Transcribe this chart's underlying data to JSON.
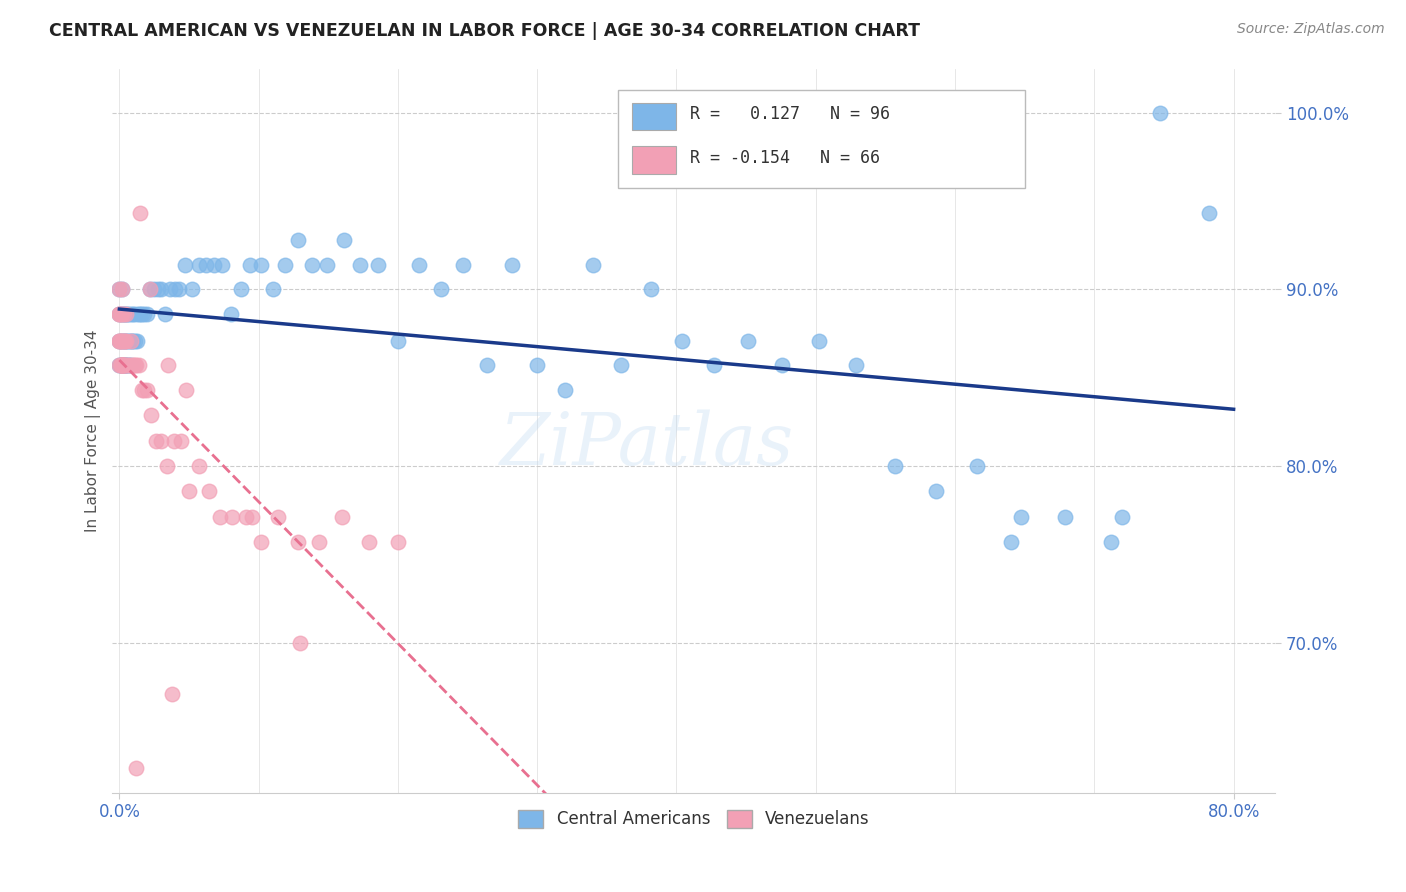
{
  "title": "CENTRAL AMERICAN VS VENEZUELAN IN LABOR FORCE | AGE 30-34 CORRELATION CHART",
  "source": "Source: ZipAtlas.com",
  "ylabel": "In Labor Force | Age 30-34",
  "y_min": 0.615,
  "y_max": 1.025,
  "x_min": -0.005,
  "x_max": 0.83,
  "blue_color": "#7EB6E8",
  "pink_color": "#F2A0B5",
  "blue_line_color": "#1A3A8A",
  "pink_line_color": "#E87090",
  "legend_blue_r": "R =",
  "legend_blue_rv": "0.127",
  "legend_blue_n": "N = 96",
  "legend_pink_r": "R = -0.154",
  "legend_pink_rv": "-0.154",
  "legend_pink_n": "N = 66",
  "legend_bottom_blue": "Central Americans",
  "legend_bottom_pink": "Venezuelans",
  "blue_x": [
    0.0,
    0.0,
    0.0,
    0.0,
    0.001,
    0.001,
    0.001,
    0.001,
    0.002,
    0.002,
    0.002,
    0.002,
    0.003,
    0.003,
    0.003,
    0.003,
    0.004,
    0.004,
    0.004,
    0.004,
    0.005,
    0.005,
    0.005,
    0.006,
    0.006,
    0.006,
    0.007,
    0.007,
    0.007,
    0.008,
    0.008,
    0.009,
    0.009,
    0.01,
    0.01,
    0.011,
    0.012,
    0.013,
    0.014,
    0.015,
    0.016,
    0.018,
    0.02,
    0.022,
    0.025,
    0.028,
    0.03,
    0.033,
    0.036,
    0.04,
    0.043,
    0.047,
    0.052,
    0.057,
    0.062,
    0.068,
    0.074,
    0.08,
    0.087,
    0.094,
    0.102,
    0.11,
    0.119,
    0.128,
    0.138,
    0.149,
    0.161,
    0.173,
    0.186,
    0.2,
    0.215,
    0.231,
    0.247,
    0.264,
    0.282,
    0.3,
    0.32,
    0.34,
    0.36,
    0.382,
    0.404,
    0.427,
    0.451,
    0.476,
    0.502,
    0.529,
    0.557,
    0.586,
    0.616,
    0.647,
    0.679,
    0.712,
    0.747,
    0.782,
    0.64,
    0.72
  ],
  "blue_y": [
    0.857,
    0.871,
    0.886,
    0.9,
    0.857,
    0.871,
    0.886,
    0.857,
    0.857,
    0.871,
    0.886,
    0.9,
    0.857,
    0.857,
    0.871,
    0.886,
    0.857,
    0.857,
    0.871,
    0.886,
    0.857,
    0.871,
    0.886,
    0.857,
    0.871,
    0.886,
    0.857,
    0.871,
    0.886,
    0.857,
    0.871,
    0.871,
    0.886,
    0.871,
    0.886,
    0.871,
    0.886,
    0.871,
    0.886,
    0.886,
    0.886,
    0.886,
    0.886,
    0.9,
    0.9,
    0.9,
    0.9,
    0.886,
    0.9,
    0.9,
    0.9,
    0.914,
    0.9,
    0.914,
    0.914,
    0.914,
    0.914,
    0.886,
    0.9,
    0.914,
    0.914,
    0.9,
    0.914,
    0.928,
    0.914,
    0.914,
    0.928,
    0.914,
    0.914,
    0.871,
    0.914,
    0.9,
    0.914,
    0.857,
    0.914,
    0.857,
    0.843,
    0.914,
    0.857,
    0.9,
    0.871,
    0.857,
    0.871,
    0.857,
    0.871,
    0.857,
    0.8,
    0.786,
    0.8,
    0.771,
    0.771,
    0.757,
    1.0,
    0.943,
    0.757,
    0.771
  ],
  "pink_x": [
    0.0,
    0.0,
    0.0,
    0.0,
    0.0,
    0.0,
    0.001,
    0.001,
    0.001,
    0.001,
    0.001,
    0.001,
    0.002,
    0.002,
    0.002,
    0.002,
    0.002,
    0.002,
    0.002,
    0.003,
    0.003,
    0.003,
    0.003,
    0.004,
    0.004,
    0.004,
    0.005,
    0.005,
    0.006,
    0.007,
    0.008,
    0.009,
    0.01,
    0.011,
    0.012,
    0.014,
    0.016,
    0.018,
    0.02,
    0.023,
    0.026,
    0.03,
    0.034,
    0.039,
    0.044,
    0.05,
    0.057,
    0.064,
    0.072,
    0.081,
    0.091,
    0.102,
    0.114,
    0.128,
    0.143,
    0.16,
    0.179,
    0.2,
    0.022,
    0.035,
    0.015,
    0.048,
    0.095,
    0.13,
    0.038,
    0.012
  ],
  "pink_y": [
    0.857,
    0.871,
    0.871,
    0.886,
    0.886,
    0.9,
    0.857,
    0.857,
    0.857,
    0.871,
    0.871,
    0.886,
    0.857,
    0.857,
    0.857,
    0.857,
    0.871,
    0.886,
    0.9,
    0.857,
    0.857,
    0.871,
    0.886,
    0.857,
    0.857,
    0.871,
    0.871,
    0.886,
    0.857,
    0.857,
    0.871,
    0.857,
    0.857,
    0.857,
    0.857,
    0.857,
    0.843,
    0.843,
    0.843,
    0.829,
    0.814,
    0.814,
    0.8,
    0.814,
    0.814,
    0.786,
    0.8,
    0.786,
    0.771,
    0.771,
    0.771,
    0.757,
    0.771,
    0.757,
    0.757,
    0.771,
    0.757,
    0.757,
    0.9,
    0.857,
    0.943,
    0.843,
    0.771,
    0.7,
    0.671,
    0.629
  ]
}
